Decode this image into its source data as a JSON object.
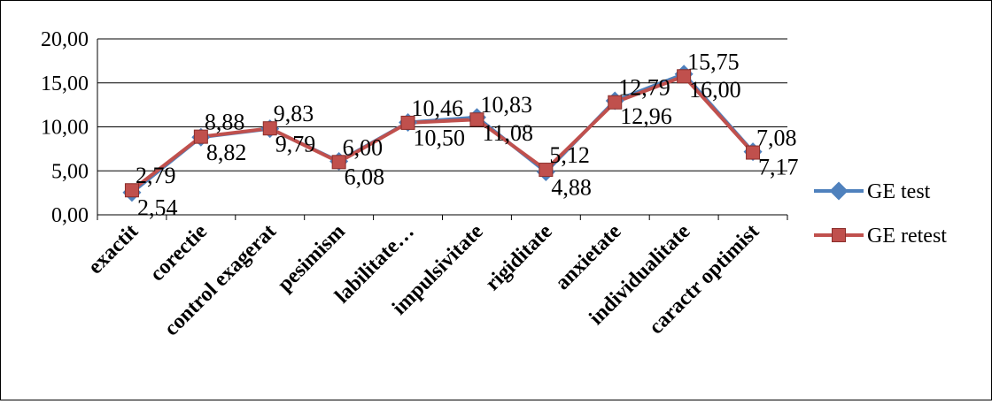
{
  "chart_data": {
    "type": "line",
    "categories": [
      "exactit",
      "corectie",
      "control exagerat",
      "pesimism",
      "labilitate…",
      "impulsivitate",
      "rigiditate",
      "anxietate",
      "individualitate",
      "caractr optimist"
    ],
    "series": [
      {
        "name": "GE test",
        "values": [
          2.54,
          8.82,
          9.79,
          6.08,
          10.5,
          11.08,
          4.88,
          12.96,
          16.0,
          7.17
        ],
        "labels": [
          "2,54",
          "8,82",
          "9,79",
          "6,08",
          "10,50",
          "11,08",
          "4,88",
          "12,96",
          "16,00",
          "7,17"
        ],
        "color": "#4F81BD",
        "marker": "diamond"
      },
      {
        "name": "GE retest",
        "values": [
          2.79,
          8.88,
          9.83,
          6.0,
          10.46,
          10.83,
          5.12,
          12.79,
          15.75,
          7.08
        ],
        "labels": [
          "2,79",
          "8,88",
          "9,83",
          "6,00",
          "10,46",
          "10,83",
          "5,12",
          "12,79",
          "15,75",
          "7,08"
        ],
        "color": "#C0504D",
        "marker": "square"
      }
    ],
    "yticks": [
      "0,00",
      "5,00",
      "10,00",
      "15,00",
      "20,00"
    ],
    "ylim": [
      0,
      20
    ],
    "grid": true,
    "legend": "right"
  }
}
